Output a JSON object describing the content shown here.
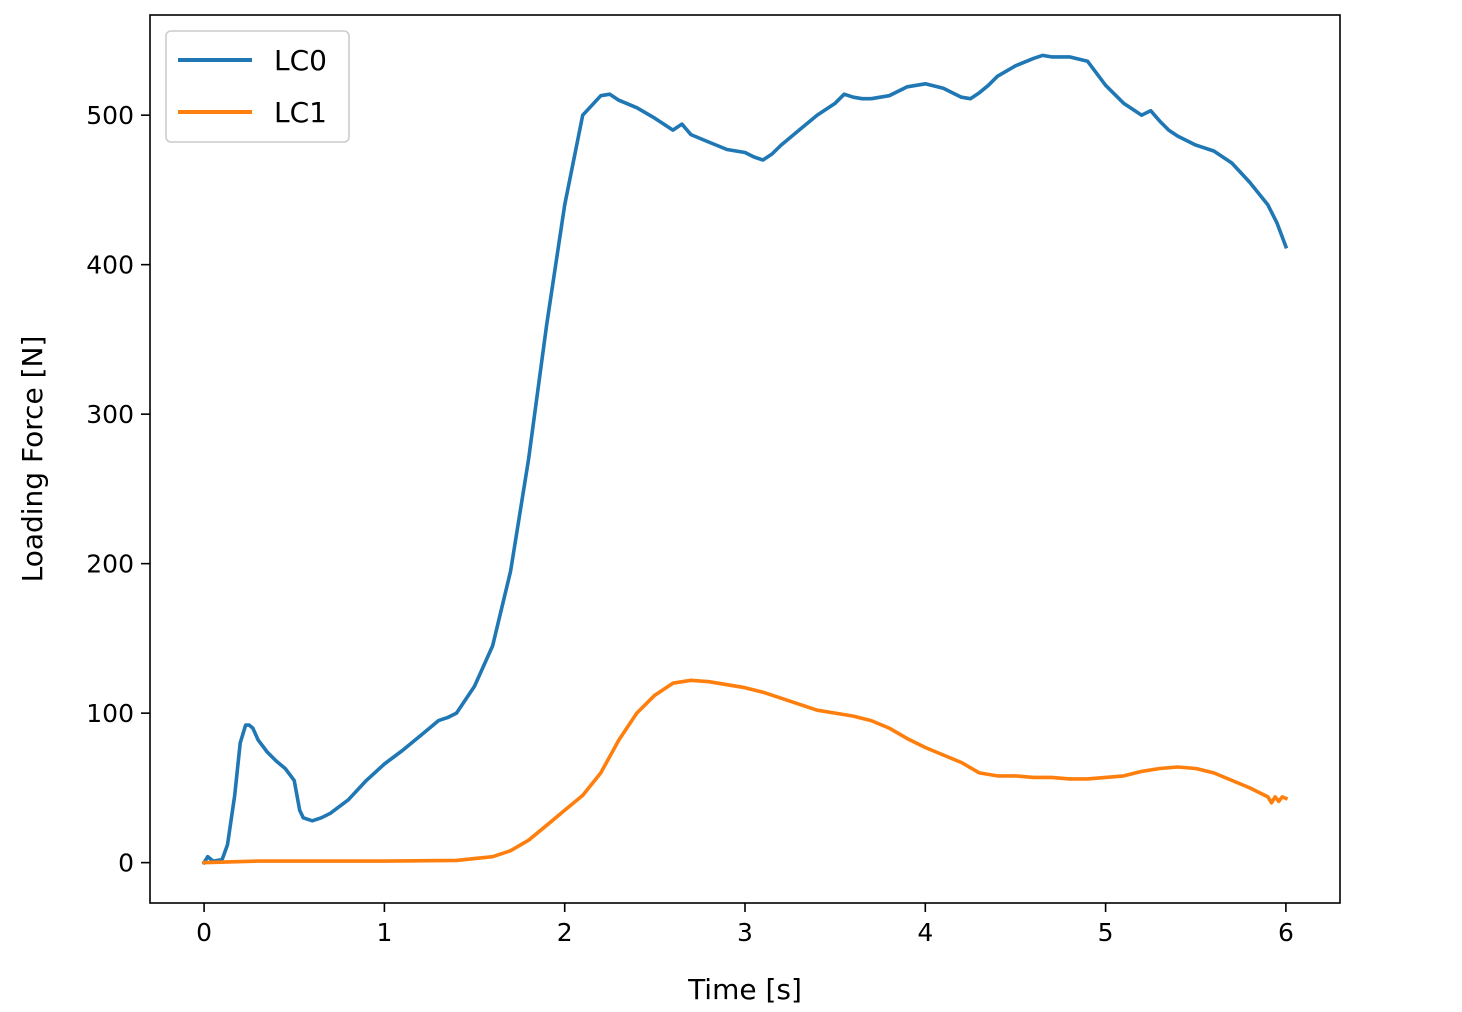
{
  "chart_data": {
    "type": "line",
    "title": "",
    "xlabel": "Time [s]",
    "ylabel": "Loading Force [N]",
    "xlim": [
      -0.3,
      6.3
    ],
    "ylim": [
      -27,
      567
    ],
    "xticks": [
      0,
      1,
      2,
      3,
      4,
      5,
      6
    ],
    "yticks": [
      0,
      100,
      200,
      300,
      400,
      500
    ],
    "grid": false,
    "legend_position": "top-left",
    "series": [
      {
        "name": "LC0",
        "color": "#1f77b4",
        "x": [
          0,
          0.02,
          0.05,
          0.1,
          0.13,
          0.17,
          0.2,
          0.23,
          0.25,
          0.27,
          0.3,
          0.35,
          0.4,
          0.45,
          0.5,
          0.53,
          0.55,
          0.6,
          0.65,
          0.7,
          0.8,
          0.9,
          1.0,
          1.1,
          1.2,
          1.3,
          1.35,
          1.4,
          1.5,
          1.6,
          1.7,
          1.8,
          1.9,
          2.0,
          2.1,
          2.2,
          2.25,
          2.3,
          2.4,
          2.5,
          2.6,
          2.65,
          2.7,
          2.8,
          2.9,
          3.0,
          3.05,
          3.1,
          3.15,
          3.2,
          3.3,
          3.4,
          3.5,
          3.55,
          3.6,
          3.65,
          3.7,
          3.8,
          3.9,
          4.0,
          4.1,
          4.2,
          4.25,
          4.3,
          4.35,
          4.4,
          4.5,
          4.6,
          4.65,
          4.7,
          4.8,
          4.9,
          5.0,
          5.1,
          5.2,
          5.25,
          5.3,
          5.35,
          5.4,
          5.5,
          5.6,
          5.7,
          5.8,
          5.9,
          5.95,
          6.0
        ],
        "y": [
          0,
          4,
          1,
          2,
          12,
          45,
          80,
          92,
          92,
          90,
          82,
          74,
          68,
          63,
          55,
          35,
          30,
          28,
          30,
          33,
          42,
          55,
          66,
          75,
          85,
          95,
          97,
          100,
          118,
          145,
          195,
          270,
          360,
          440,
          500,
          513,
          514,
          510,
          505,
          498,
          490,
          494,
          487,
          482,
          477,
          475,
          472,
          470,
          474,
          480,
          490,
          500,
          508,
          514,
          512,
          511,
          511,
          513,
          519,
          521,
          518,
          512,
          511,
          515,
          520,
          526,
          533,
          538,
          540,
          539,
          539,
          536,
          520,
          508,
          500,
          503,
          496,
          490,
          486,
          480,
          476,
          468,
          455,
          440,
          428,
          412
        ]
      },
      {
        "name": "LC1",
        "color": "#ff7f0e",
        "x": [
          0,
          0.3,
          0.6,
          1.0,
          1.4,
          1.6,
          1.7,
          1.8,
          1.9,
          2.0,
          2.1,
          2.2,
          2.3,
          2.4,
          2.5,
          2.6,
          2.7,
          2.8,
          2.9,
          3.0,
          3.1,
          3.2,
          3.3,
          3.4,
          3.5,
          3.6,
          3.7,
          3.8,
          3.9,
          4.0,
          4.1,
          4.2,
          4.3,
          4.4,
          4.5,
          4.6,
          4.7,
          4.8,
          4.9,
          5.0,
          5.1,
          5.2,
          5.3,
          5.4,
          5.5,
          5.6,
          5.7,
          5.8,
          5.9,
          5.92,
          5.94,
          5.96,
          5.98,
          6.0
        ],
        "y": [
          0,
          1,
          1,
          1,
          1.5,
          4,
          8,
          15,
          25,
          35,
          45,
          60,
          82,
          100,
          112,
          120,
          122,
          121,
          119,
          117,
          114,
          110,
          106,
          102,
          100,
          98,
          95,
          90,
          83,
          77,
          72,
          67,
          60,
          58,
          58,
          57,
          57,
          56,
          56,
          57,
          58,
          61,
          63,
          64,
          63,
          60,
          55,
          50,
          44,
          40,
          44,
          41,
          44,
          43
        ]
      }
    ]
  }
}
